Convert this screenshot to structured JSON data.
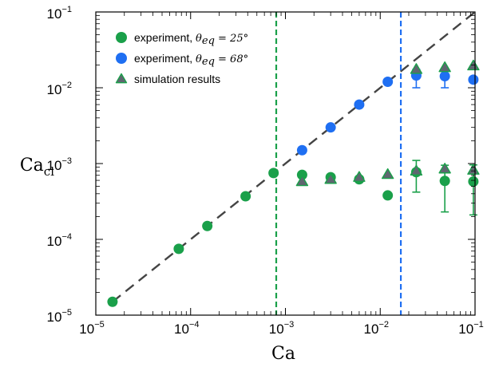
{
  "chart_data": {
    "type": "scatter",
    "xlabel": "Ca",
    "ylabel": "Ca",
    "ylabel_subscript": "cl",
    "xscale": "log",
    "yscale": "log",
    "xlim": [
      1e-05,
      0.1
    ],
    "ylim": [
      1e-05,
      0.1
    ],
    "x_ticks": [
      {
        "base": "10",
        "exp": "−5",
        "value": 1e-05
      },
      {
        "base": "10",
        "exp": "−4",
        "value": 0.0001
      },
      {
        "base": "10",
        "exp": "−3",
        "value": 0.001
      },
      {
        "base": "10",
        "exp": "−2",
        "value": 0.01
      },
      {
        "base": "10",
        "exp": "−1",
        "value": 0.1
      }
    ],
    "y_ticks": [
      {
        "base": "10",
        "exp": "−5",
        "value": 1e-05
      },
      {
        "base": "10",
        "exp": "−4",
        "value": 0.0001
      },
      {
        "base": "10",
        "exp": "−3",
        "value": 0.001
      },
      {
        "base": "10",
        "exp": "−2",
        "value": 0.01
      },
      {
        "base": "10",
        "exp": "−1",
        "value": 0.1
      }
    ],
    "grid": false,
    "legend_position": "top-left",
    "series": [
      {
        "label_prefix": "experiment, ",
        "label_math": "θ",
        "label_math_sub": "eq",
        "label_math_value": " = 25°",
        "marker": "circle",
        "color": "#1aa04a",
        "points": [
          {
            "x": 1.5e-05,
            "y": 1.5e-05
          },
          {
            "x": 7.5e-05,
            "y": 7.5e-05
          },
          {
            "x": 0.00015,
            "y": 0.00015
          },
          {
            "x": 0.00038,
            "y": 0.00037
          },
          {
            "x": 0.00075,
            "y": 0.00075
          },
          {
            "x": 0.0015,
            "y": 0.00071
          },
          {
            "x": 0.003,
            "y": 0.00066
          },
          {
            "x": 0.006,
            "y": 0.00062
          },
          {
            "x": 0.012,
            "y": 0.00038
          },
          {
            "x": 0.024,
            "y": 0.00077,
            "err_low": 0.00042,
            "err_high": 0.0011
          },
          {
            "x": 0.048,
            "y": 0.00059,
            "err_low": 0.00023,
            "err_high": 0.00095
          },
          {
            "x": 0.096,
            "y": 0.00058,
            "err_low": 0.00021,
            "err_high": 0.00096
          }
        ]
      },
      {
        "label_prefix": "experiment, ",
        "label_math": "θ",
        "label_math_sub": "eq",
        "label_math_value": " = 68°",
        "marker": "circle",
        "color": "#1f6ff2",
        "points": [
          {
            "x": 0.0015,
            "y": 0.0015
          },
          {
            "x": 0.003,
            "y": 0.003
          },
          {
            "x": 0.006,
            "y": 0.006
          },
          {
            "x": 0.012,
            "y": 0.012
          },
          {
            "x": 0.024,
            "y": 0.0145,
            "err_low": 0.01,
            "err_high": 0.0175
          },
          {
            "x": 0.048,
            "y": 0.0142,
            "err_low": 0.01,
            "err_high": 0.0175
          },
          {
            "x": 0.096,
            "y": 0.0128
          }
        ]
      },
      {
        "label": "simulation results",
        "marker": "triangle",
        "color": "#5f6670",
        "points": [
          {
            "x": 0.0015,
            "y": 0.00058
          },
          {
            "x": 0.003,
            "y": 0.00062
          },
          {
            "x": 0.006,
            "y": 0.00066
          },
          {
            "x": 0.012,
            "y": 0.00072
          },
          {
            "x": 0.024,
            "y": 0.0008
          },
          {
            "x": 0.048,
            "y": 0.00085
          },
          {
            "x": 0.096,
            "y": 0.00082
          },
          {
            "x": 0.024,
            "y": 0.0175
          },
          {
            "x": 0.048,
            "y": 0.0185
          },
          {
            "x": 0.096,
            "y": 0.0195
          }
        ]
      }
    ],
    "reference_lines": [
      {
        "kind": "diagonal",
        "from": [
          1.5e-05,
          1.5e-05
        ],
        "to": [
          0.1,
          0.1
        ],
        "color": "#444444",
        "style": "dashed"
      },
      {
        "kind": "vertical",
        "x": 0.0008,
        "color": "#1aa04a",
        "style": "dashed"
      },
      {
        "kind": "vertical",
        "x": 0.0165,
        "color": "#1f6ff2",
        "style": "dashed"
      }
    ]
  }
}
